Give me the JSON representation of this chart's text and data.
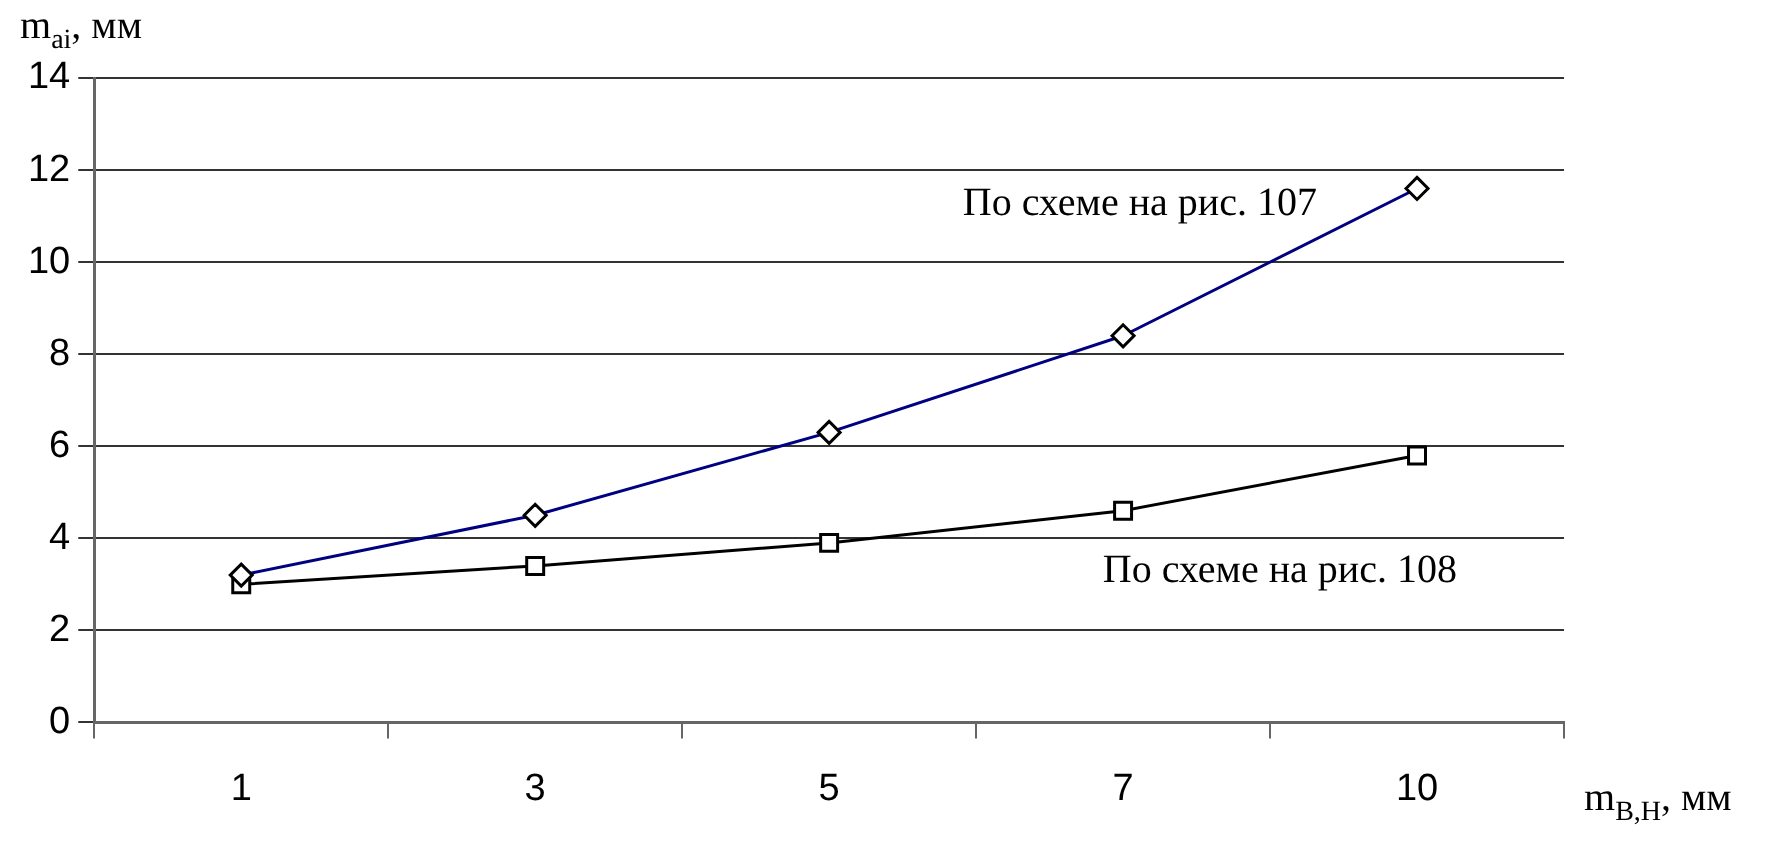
{
  "chart_data": {
    "type": "line",
    "xlabel": "m$_{В,Н}$, мм",
    "ylabel": "m$_{ai}$, мм",
    "categories": [
      "1",
      "3",
      "5",
      "7",
      "10"
    ],
    "series": [
      {
        "name": "По схеме на рис. 107",
        "color": "#000080",
        "marker": "diamond",
        "values": [
          3.2,
          4.5,
          6.3,
          8.4,
          11.6
        ]
      },
      {
        "name": "По схеме на рис. 108",
        "color": "#000000",
        "marker": "square",
        "values": [
          3.0,
          3.4,
          3.9,
          4.6,
          5.8
        ]
      }
    ],
    "ylim": [
      0,
      14
    ],
    "yticks": [
      0,
      2,
      4,
      6,
      8,
      10,
      12,
      14
    ],
    "grid": "y",
    "legend": false,
    "line_style": "solid"
  }
}
